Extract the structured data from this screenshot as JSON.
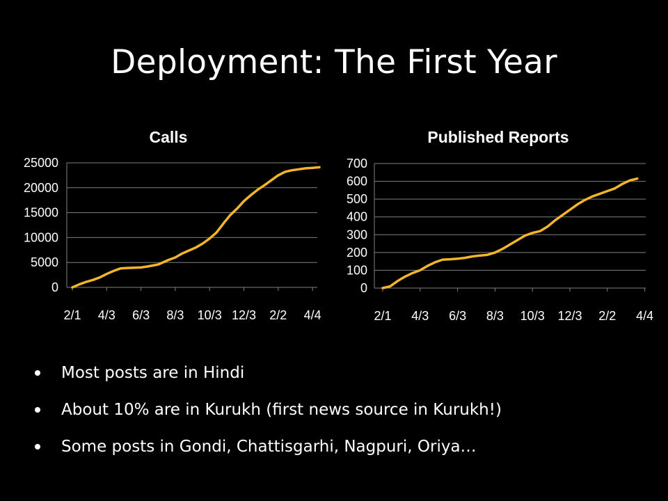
{
  "slide": {
    "title": "Deployment:  The First Year"
  },
  "colors": {
    "background": "#000000",
    "series": "#F5B52A",
    "grid": "#808080",
    "text": "#FFFFFF"
  },
  "chart_data": [
    {
      "type": "line",
      "title": "Calls",
      "xlabel": "",
      "ylabel": "",
      "x_ticks": [
        "2/1",
        "4/3",
        "6/3",
        "8/3",
        "10/3",
        "12/3",
        "2/2",
        "4/4"
      ],
      "y_ticks": [
        0,
        5000,
        10000,
        15000,
        20000,
        25000
      ],
      "ylim": [
        0,
        25000
      ],
      "grid": true,
      "legend": "none",
      "series": [
        {
          "x": [
            0,
            0.1,
            0.2,
            0.4,
            0.6,
            0.8,
            1.0,
            1.2,
            1.4,
            1.6,
            1.8,
            2.0,
            2.2,
            2.5,
            2.8,
            3.0,
            3.2,
            3.4,
            3.6,
            3.8,
            4.0,
            4.2,
            4.4,
            4.6,
            4.8,
            5.0,
            5.2,
            5.4,
            5.6,
            5.8,
            6.0,
            6.2,
            6.4,
            6.6,
            6.8,
            7.0,
            7.1,
            7.2
          ],
          "values": [
            0,
            300,
            600,
            1100,
            1500,
            2000,
            2700,
            3300,
            3800,
            3900,
            3950,
            4000,
            4200,
            4600,
            5500,
            6000,
            6800,
            7400,
            8000,
            8800,
            9800,
            11000,
            12800,
            14500,
            15800,
            17300,
            18500,
            19600,
            20500,
            21500,
            22500,
            23200,
            23500,
            23700,
            23900,
            24000,
            24050,
            24100
          ]
        }
      ]
    },
    {
      "type": "line",
      "title": "Published Reports",
      "xlabel": "",
      "ylabel": "",
      "x_ticks": [
        "2/1",
        "4/3",
        "6/3",
        "8/3",
        "10/3",
        "12/3",
        "2/2",
        "4/4"
      ],
      "y_ticks": [
        0,
        100,
        200,
        300,
        400,
        500,
        600,
        700
      ],
      "ylim": [
        0,
        700
      ],
      "grid": true,
      "legend": "none",
      "series": [
        {
          "x": [
            0,
            0.2,
            0.4,
            0.6,
            0.8,
            1.0,
            1.2,
            1.4,
            1.6,
            1.8,
            2.0,
            2.2,
            2.4,
            2.6,
            2.8,
            3.0,
            3.2,
            3.4,
            3.6,
            3.8,
            4.0,
            4.2,
            4.4,
            4.6,
            4.8,
            5.0,
            5.2,
            5.4,
            5.6,
            5.8,
            6.0,
            6.2,
            6.4,
            6.6,
            6.8
          ],
          "values": [
            0,
            10,
            40,
            65,
            85,
            100,
            125,
            145,
            160,
            162,
            165,
            170,
            178,
            183,
            187,
            200,
            220,
            245,
            270,
            295,
            310,
            320,
            345,
            380,
            410,
            440,
            470,
            495,
            515,
            530,
            545,
            560,
            585,
            605,
            615
          ]
        }
      ]
    }
  ],
  "bullets": [
    "Most posts are in Hindi",
    "About 10% are in Kurukh (first news source in Kurukh!)",
    "Some posts in Gondi, Chattisgarhi, Nagpuri, Oriya…"
  ]
}
